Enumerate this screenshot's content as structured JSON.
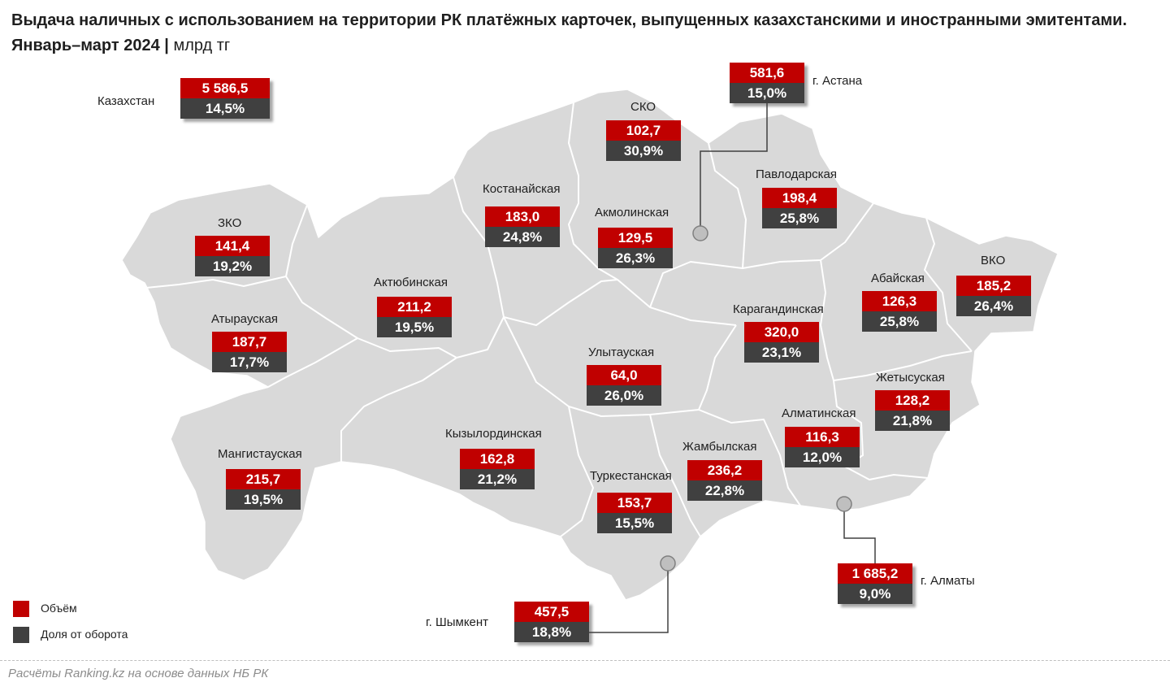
{
  "title": {
    "main": "Выдача наличных с использованием на территории РК платёжных карточек, выпущенных казахстанскими и иностранными эмитентами. Январь–март 2024",
    "separator": "|",
    "unit": "млрд тг"
  },
  "colors": {
    "volume": "#c00000",
    "share": "#404040",
    "map_fill": "#d9d9d9",
    "map_border": "#ffffff"
  },
  "regions": [
    {
      "id": "kazakhstan",
      "name": "Казахстан",
      "value": "5 586,5",
      "share": "14,5%"
    },
    {
      "id": "astana",
      "name": "г. Астана",
      "value": "581,6",
      "share": "15,0%"
    },
    {
      "id": "sko",
      "name": "СКО",
      "value": "102,7",
      "share": "30,9%"
    },
    {
      "id": "kostanay",
      "name": "Костанайская",
      "value": "183,0",
      "share": "24,8%"
    },
    {
      "id": "akmola",
      "name": "Акмолинская",
      "value": "129,5",
      "share": "26,3%"
    },
    {
      "id": "pavlodar",
      "name": "Павлодарская",
      "value": "198,4",
      "share": "25,8%"
    },
    {
      "id": "zko",
      "name": "ЗКО",
      "value": "141,4",
      "share": "19,2%"
    },
    {
      "id": "aktobe",
      "name": "Актюбинская",
      "value": "211,2",
      "share": "19,5%"
    },
    {
      "id": "atyrau",
      "name": "Атырауская",
      "value": "187,7",
      "share": "17,7%"
    },
    {
      "id": "abay",
      "name": "Абайская",
      "value": "126,3",
      "share": "25,8%"
    },
    {
      "id": "vko",
      "name": "ВКО",
      "value": "185,2",
      "share": "26,4%"
    },
    {
      "id": "karaganda",
      "name": "Карагандинская",
      "value": "320,0",
      "share": "23,1%"
    },
    {
      "id": "ulytau",
      "name": "Улытауская",
      "value": "64,0",
      "share": "26,0%"
    },
    {
      "id": "zhetysu",
      "name": "Жетысуская",
      "value": "128,2",
      "share": "21,8%"
    },
    {
      "id": "almaty_reg",
      "name": "Алматинская",
      "value": "116,3",
      "share": "12,0%"
    },
    {
      "id": "kyzylorda",
      "name": "Кызылординская",
      "value": "162,8",
      "share": "21,2%"
    },
    {
      "id": "mangystau",
      "name": "Мангистауская",
      "value": "215,7",
      "share": "19,5%"
    },
    {
      "id": "zhambyl",
      "name": "Жамбылская",
      "value": "236,2",
      "share": "22,8%"
    },
    {
      "id": "turkestan",
      "name": "Туркестанская",
      "value": "153,7",
      "share": "15,5%"
    },
    {
      "id": "almaty_city",
      "name": "г. Алматы",
      "value": "1 685,2",
      "share": "9,0%"
    },
    {
      "id": "shymkent",
      "name": "г. Шымкент",
      "value": "457,5",
      "share": "18,8%"
    }
  ],
  "legend": {
    "volume": "Объём",
    "share": "Доля от оборота"
  },
  "source": "Расчёты Ranking.kz на основе данных НБ РК"
}
